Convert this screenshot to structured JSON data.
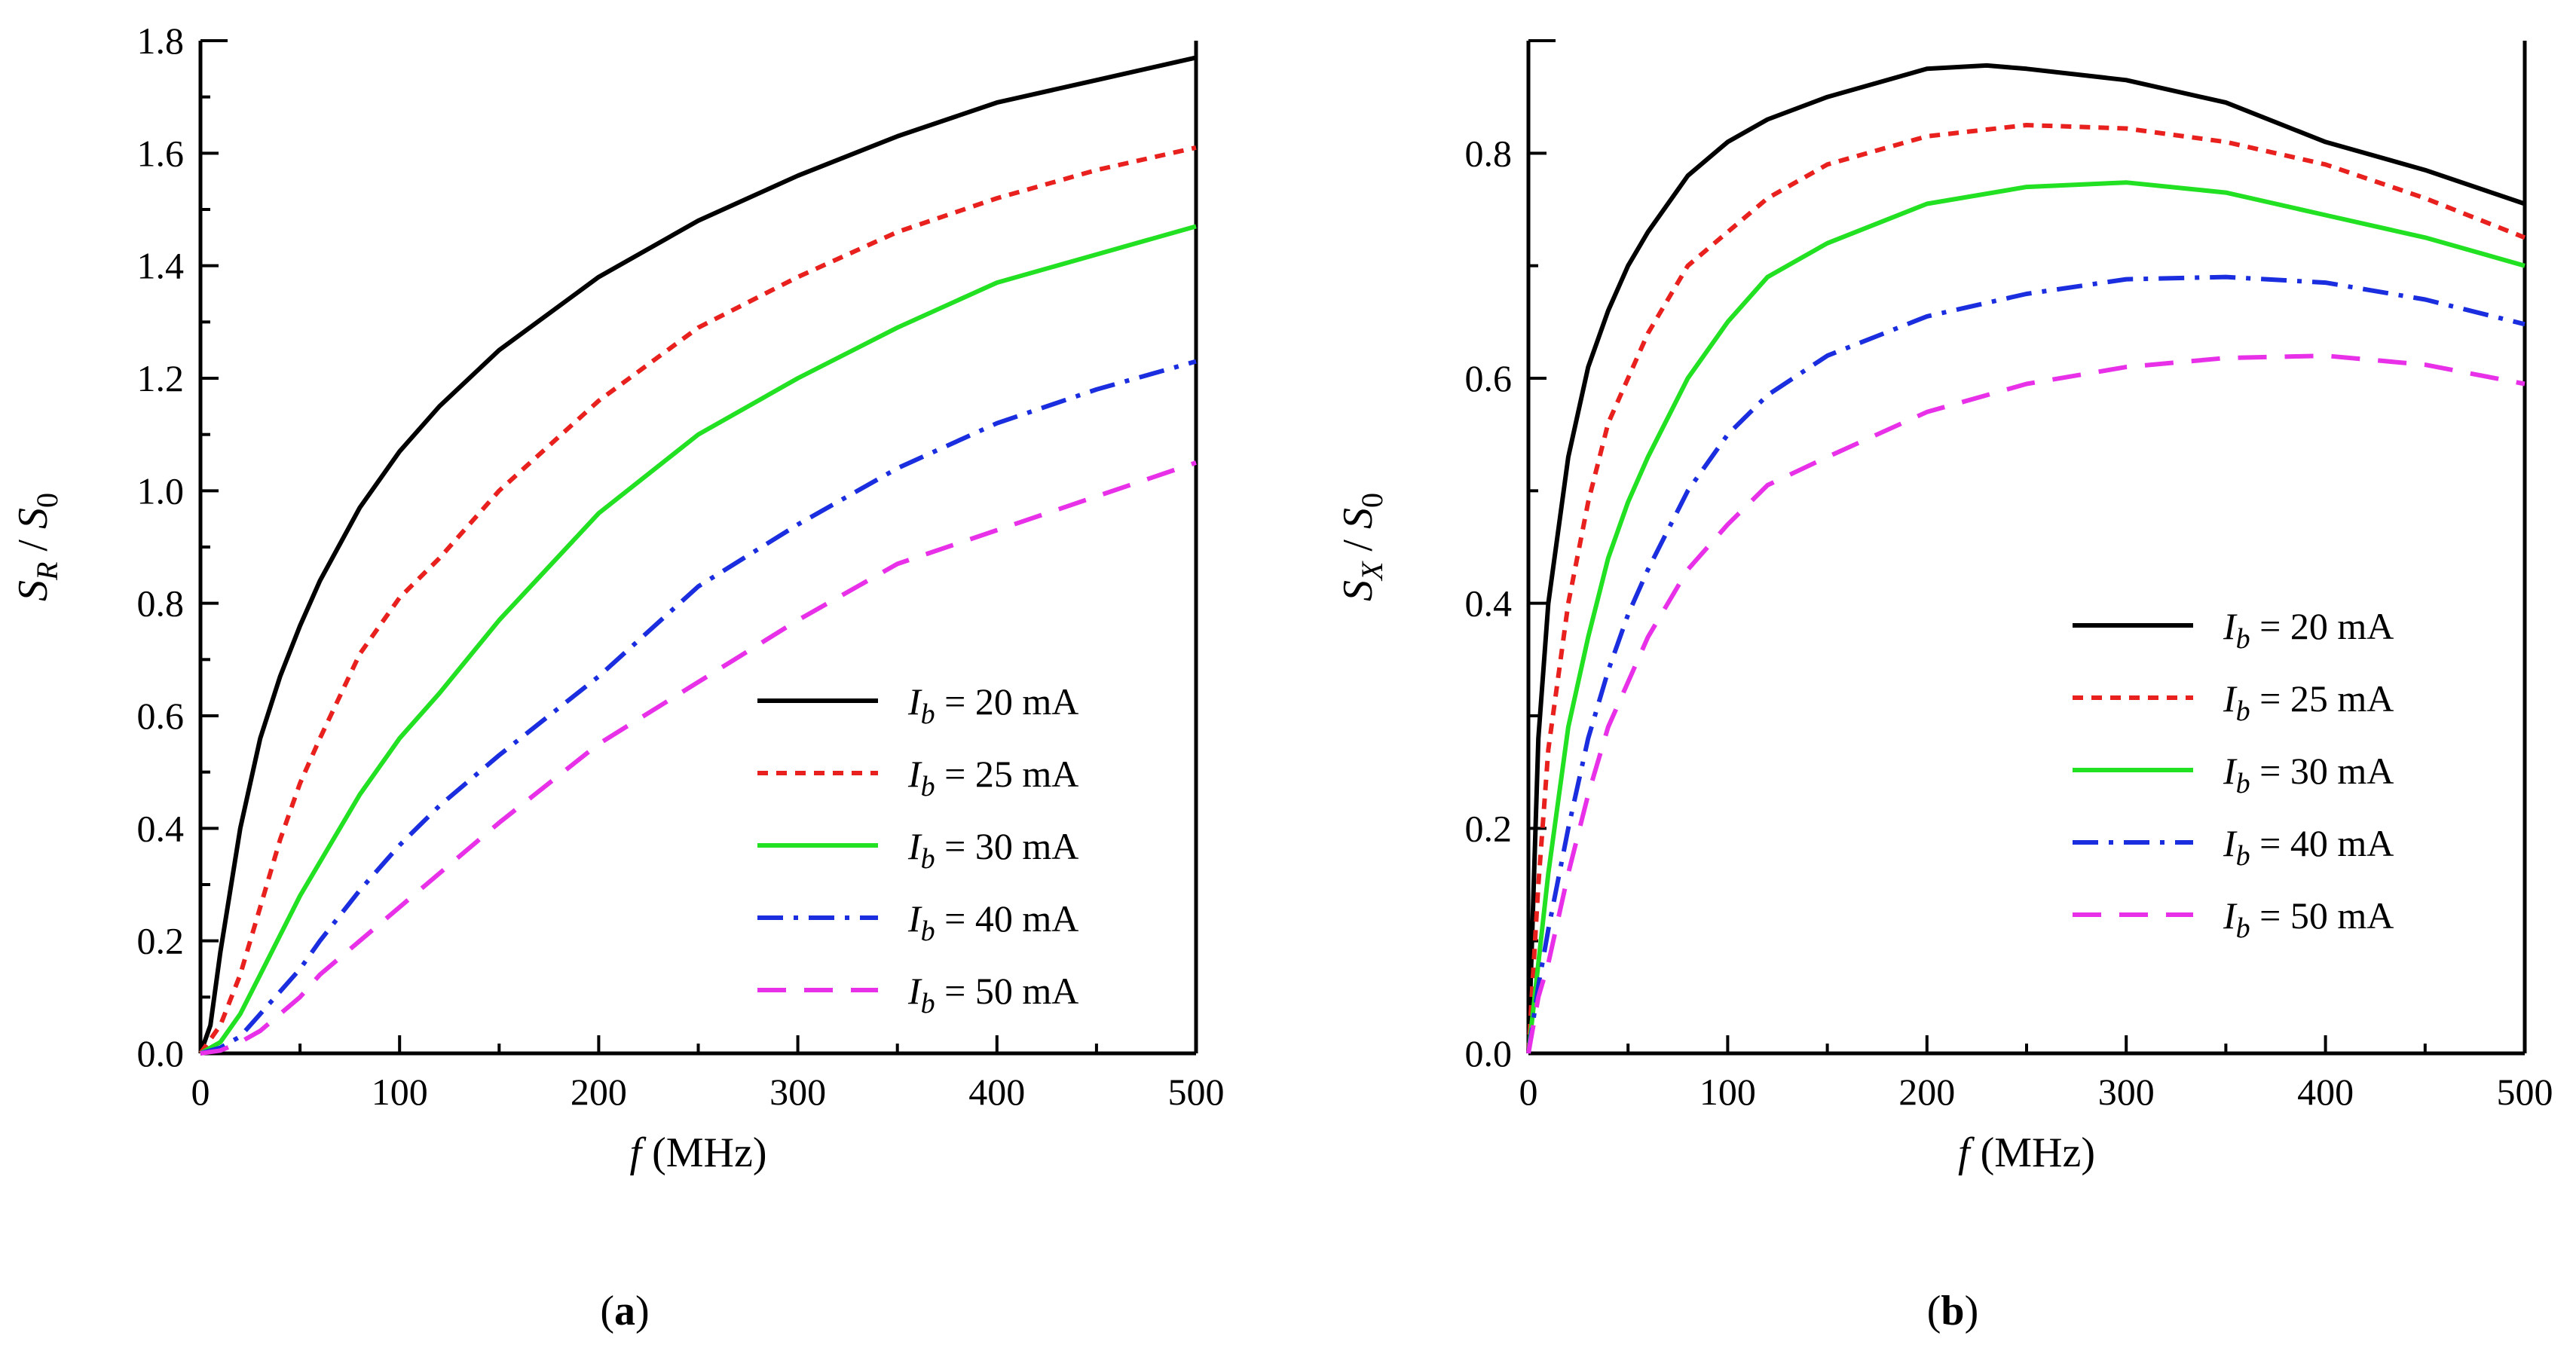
{
  "chart_data": [
    {
      "type": "line",
      "panel_label": "a",
      "xlabel": {
        "symbol": "f",
        "unit": "(MHz)"
      },
      "ylabel": {
        "base": "S",
        "sub": "R",
        "sep": "/",
        "base2": "S",
        "sub2": "0"
      },
      "xlim": [
        0,
        500
      ],
      "ylim": [
        0,
        1.8
      ],
      "xticks": [
        0,
        100,
        200,
        300,
        400,
        500
      ],
      "xtick_labels": [
        "0",
        "100",
        "200",
        "300",
        "400",
        "500"
      ],
      "yticks": [
        0,
        0.2,
        0.4,
        0.6,
        0.8,
        1.0,
        1.2,
        1.4,
        1.6,
        1.8
      ],
      "ytick_labels": [
        "0.0",
        "0.2",
        "0.4",
        "0.6",
        "0.8",
        "1.0",
        "1.2",
        "1.4",
        "1.6",
        "1.8"
      ],
      "legend_position": "bottom-right",
      "series": [
        {
          "name_symbol": "I",
          "name_sub": "b",
          "name_rest": "= 20 mA",
          "color": "#000000",
          "style": "solid",
          "x": [
            0,
            5,
            10,
            20,
            30,
            40,
            50,
            60,
            80,
            100,
            120,
            150,
            200,
            250,
            300,
            350,
            400,
            450,
            500
          ],
          "y": [
            0,
            0.05,
            0.18,
            0.4,
            0.56,
            0.67,
            0.76,
            0.84,
            0.97,
            1.07,
            1.15,
            1.25,
            1.38,
            1.48,
            1.56,
            1.63,
            1.69,
            1.73,
            1.77
          ]
        },
        {
          "name_symbol": "I",
          "name_sub": "b",
          "name_rest": "= 25 mA",
          "color": "#e8201e",
          "style": "dotted",
          "x": [
            0,
            10,
            20,
            30,
            40,
            50,
            60,
            80,
            100,
            120,
            150,
            200,
            250,
            300,
            350,
            400,
            450,
            500
          ],
          "y": [
            0,
            0.05,
            0.14,
            0.26,
            0.38,
            0.48,
            0.56,
            0.71,
            0.81,
            0.88,
            1.0,
            1.16,
            1.29,
            1.38,
            1.46,
            1.52,
            1.57,
            1.61
          ]
        },
        {
          "name_symbol": "I",
          "name_sub": "b",
          "name_rest": "= 30 mA",
          "color": "#22e022",
          "style": "solid",
          "x": [
            0,
            10,
            20,
            30,
            40,
            50,
            60,
            80,
            100,
            120,
            150,
            200,
            250,
            300,
            350,
            400,
            450,
            500
          ],
          "y": [
            0,
            0.02,
            0.07,
            0.14,
            0.21,
            0.28,
            0.34,
            0.46,
            0.56,
            0.64,
            0.77,
            0.96,
            1.1,
            1.2,
            1.29,
            1.37,
            1.42,
            1.47
          ]
        },
        {
          "name_symbol": "I",
          "name_sub": "b",
          "name_rest": "= 40 mA",
          "color": "#1a2ee0",
          "style": "dashdot",
          "x": [
            0,
            10,
            20,
            30,
            40,
            50,
            60,
            80,
            100,
            120,
            150,
            200,
            250,
            300,
            350,
            400,
            450,
            500
          ],
          "y": [
            0,
            0.01,
            0.03,
            0.07,
            0.11,
            0.15,
            0.2,
            0.29,
            0.37,
            0.44,
            0.53,
            0.67,
            0.83,
            0.94,
            1.04,
            1.12,
            1.18,
            1.23
          ]
        },
        {
          "name_symbol": "I",
          "name_sub": "b",
          "name_rest": "= 50 mA",
          "color": "#e830e8",
          "style": "dashed",
          "x": [
            0,
            10,
            20,
            30,
            40,
            50,
            60,
            80,
            100,
            120,
            150,
            200,
            250,
            300,
            350,
            400,
            450,
            500
          ],
          "y": [
            0,
            0.005,
            0.02,
            0.04,
            0.07,
            0.1,
            0.14,
            0.2,
            0.26,
            0.32,
            0.41,
            0.55,
            0.66,
            0.77,
            0.87,
            0.93,
            0.99,
            1.05
          ]
        }
      ]
    },
    {
      "type": "line",
      "panel_label": "b",
      "xlabel": {
        "symbol": "f",
        "unit": "(MHz)"
      },
      "ylabel": {
        "base": "S",
        "sub": "X",
        "sep": "/",
        "base2": "S",
        "sub2": "0"
      },
      "xlim": [
        0,
        500
      ],
      "ylim": [
        0,
        0.9
      ],
      "xticks": [
        0,
        100,
        200,
        300,
        400,
        500
      ],
      "xtick_labels": [
        "0",
        "100",
        "200",
        "300",
        "400",
        "500"
      ],
      "yticks": [
        0,
        0.2,
        0.4,
        0.6,
        0.8
      ],
      "ytick_labels": [
        "0.0",
        "0.2",
        "0.4",
        "0.6",
        "0.8"
      ],
      "legend_position": "center-right",
      "series": [
        {
          "name_symbol": "I",
          "name_sub": "b",
          "name_rest": "= 20 mA",
          "color": "#000000",
          "style": "solid",
          "x": [
            0,
            5,
            10,
            20,
            30,
            40,
            50,
            60,
            80,
            100,
            120,
            150,
            200,
            230,
            250,
            300,
            350,
            400,
            450,
            500
          ],
          "y": [
            0,
            0.28,
            0.4,
            0.53,
            0.61,
            0.66,
            0.7,
            0.73,
            0.78,
            0.81,
            0.83,
            0.85,
            0.875,
            0.878,
            0.875,
            0.865,
            0.845,
            0.81,
            0.785,
            0.755
          ]
        },
        {
          "name_symbol": "I",
          "name_sub": "b",
          "name_rest": "= 25 mA",
          "color": "#e8201e",
          "style": "dotted",
          "x": [
            0,
            5,
            10,
            20,
            30,
            40,
            50,
            60,
            80,
            100,
            120,
            150,
            200,
            250,
            300,
            350,
            400,
            450,
            500
          ],
          "y": [
            0,
            0.15,
            0.27,
            0.4,
            0.49,
            0.56,
            0.6,
            0.64,
            0.7,
            0.73,
            0.76,
            0.79,
            0.815,
            0.825,
            0.822,
            0.81,
            0.79,
            0.76,
            0.725
          ]
        },
        {
          "name_symbol": "I",
          "name_sub": "b",
          "name_rest": "= 30 mA",
          "color": "#22e022",
          "style": "solid",
          "x": [
            0,
            5,
            10,
            20,
            30,
            40,
            50,
            60,
            80,
            100,
            120,
            150,
            200,
            250,
            300,
            350,
            400,
            450,
            500
          ],
          "y": [
            0,
            0.08,
            0.16,
            0.29,
            0.37,
            0.44,
            0.49,
            0.53,
            0.6,
            0.65,
            0.69,
            0.72,
            0.755,
            0.77,
            0.774,
            0.765,
            0.745,
            0.725,
            0.7
          ]
        },
        {
          "name_symbol": "I",
          "name_sub": "b",
          "name_rest": "= 40 mA",
          "color": "#1a2ee0",
          "style": "dashdot",
          "x": [
            0,
            5,
            10,
            20,
            30,
            40,
            50,
            60,
            80,
            100,
            120,
            150,
            200,
            250,
            300,
            350,
            400,
            450,
            500
          ],
          "y": [
            0,
            0.06,
            0.11,
            0.2,
            0.28,
            0.34,
            0.39,
            0.43,
            0.5,
            0.55,
            0.585,
            0.62,
            0.655,
            0.675,
            0.688,
            0.69,
            0.685,
            0.67,
            0.648
          ]
        },
        {
          "name_symbol": "I",
          "name_sub": "b",
          "name_rest": "= 50 mA",
          "color": "#e830e8",
          "style": "dashed",
          "x": [
            0,
            5,
            10,
            20,
            30,
            40,
            50,
            60,
            80,
            100,
            120,
            150,
            200,
            250,
            300,
            350,
            400,
            450,
            500
          ],
          "y": [
            0,
            0.05,
            0.08,
            0.16,
            0.23,
            0.29,
            0.33,
            0.37,
            0.43,
            0.47,
            0.505,
            0.53,
            0.57,
            0.595,
            0.61,
            0.618,
            0.62,
            0.612,
            0.595
          ]
        }
      ]
    }
  ]
}
